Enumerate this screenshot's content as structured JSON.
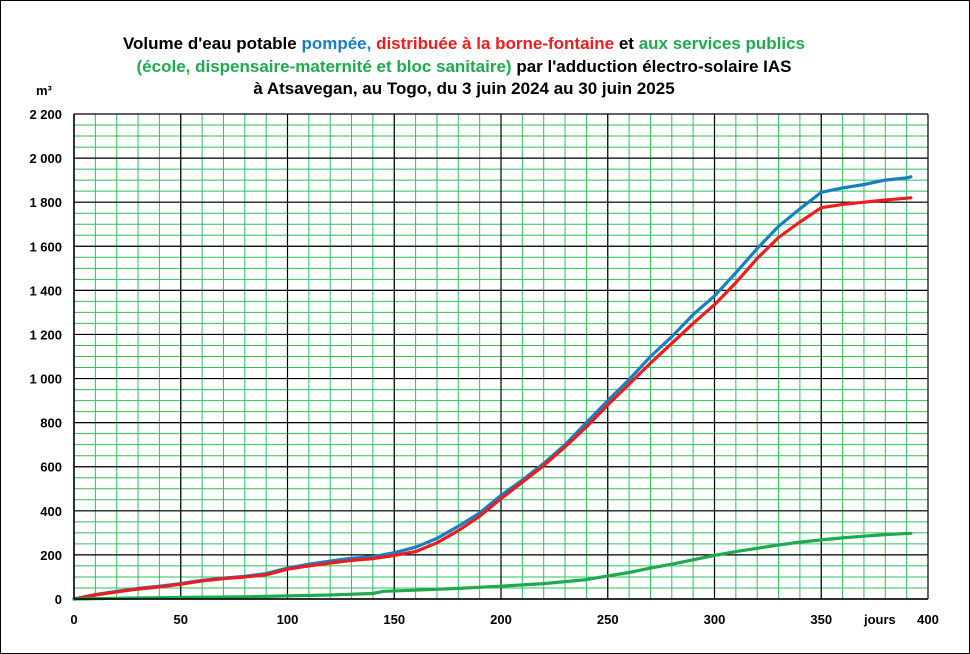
{
  "colors": {
    "pumped": "#1a7fc2",
    "fountain": "#ee1c1c",
    "services": "#1faa4e",
    "minor_grid": "#2fbf5f",
    "major_grid": "#000000"
  },
  "title": {
    "line1": [
      {
        "text": "Volume d'eau potable ",
        "color": "#000000"
      },
      {
        "text": "pompée, ",
        "color": "#1a7fc2"
      },
      {
        "text": "distribuée à la borne-fontaine",
        "color": "#ee1c1c"
      },
      {
        "text": " et ",
        "color": "#000000"
      },
      {
        "text": "aux services publics",
        "color": "#1faa4e"
      }
    ],
    "line2": [
      {
        "text": "(école, dispensaire-maternité et bloc sanitaire)",
        "color": "#1faa4e"
      },
      {
        "text": " par l'adduction électro-solaire IAS",
        "color": "#000000"
      }
    ],
    "line3": [
      {
        "text": "à Atsavegan, au Togo, du 3 juin 2024 au 30 juin 2025",
        "color": "#000000"
      }
    ]
  },
  "chart_data": {
    "type": "line",
    "ylabel": "m³",
    "xlabel": "jours",
    "xlim": [
      0,
      400
    ],
    "ylim": [
      0,
      2200
    ],
    "x_ticks": [
      0,
      50,
      100,
      150,
      200,
      250,
      300,
      350,
      400
    ],
    "y_ticks": [
      0,
      200,
      400,
      600,
      800,
      1000,
      1200,
      1400,
      1600,
      1800,
      2000,
      2200
    ],
    "y_tick_labels": [
      "0",
      "200",
      "400",
      "600",
      "800",
      "1 000",
      "1 200",
      "1 400",
      "1 600",
      "1 800",
      "2 000",
      "2 200"
    ],
    "x_minor_step": 10,
    "y_minor_step": 50,
    "grid": true,
    "series": [
      {
        "key": "pumped",
        "color": "#1a7fc2",
        "points": [
          [
            0,
            0
          ],
          [
            10,
            20
          ],
          [
            20,
            35
          ],
          [
            30,
            48
          ],
          [
            40,
            58
          ],
          [
            50,
            70
          ],
          [
            60,
            85
          ],
          [
            70,
            95
          ],
          [
            80,
            103
          ],
          [
            90,
            115
          ],
          [
            100,
            140
          ],
          [
            110,
            158
          ],
          [
            120,
            172
          ],
          [
            130,
            185
          ],
          [
            140,
            192
          ],
          [
            150,
            210
          ],
          [
            160,
            235
          ],
          [
            170,
            275
          ],
          [
            180,
            330
          ],
          [
            190,
            390
          ],
          [
            200,
            470
          ],
          [
            210,
            540
          ],
          [
            220,
            615
          ],
          [
            230,
            700
          ],
          [
            240,
            800
          ],
          [
            250,
            900
          ],
          [
            260,
            995
          ],
          [
            270,
            1100
          ],
          [
            280,
            1190
          ],
          [
            290,
            1290
          ],
          [
            300,
            1375
          ],
          [
            310,
            1480
          ],
          [
            320,
            1590
          ],
          [
            330,
            1690
          ],
          [
            340,
            1770
          ],
          [
            350,
            1845
          ],
          [
            360,
            1865
          ],
          [
            370,
            1880
          ],
          [
            380,
            1900
          ],
          [
            390,
            1910
          ],
          [
            392,
            1915
          ]
        ]
      },
      {
        "key": "fountain",
        "color": "#ee1c1c",
        "points": [
          [
            0,
            0
          ],
          [
            10,
            18
          ],
          [
            20,
            32
          ],
          [
            30,
            45
          ],
          [
            40,
            55
          ],
          [
            50,
            67
          ],
          [
            60,
            82
          ],
          [
            70,
            92
          ],
          [
            80,
            100
          ],
          [
            90,
            110
          ],
          [
            100,
            135
          ],
          [
            110,
            150
          ],
          [
            120,
            163
          ],
          [
            130,
            175
          ],
          [
            140,
            183
          ],
          [
            150,
            198
          ],
          [
            160,
            215
          ],
          [
            170,
            255
          ],
          [
            180,
            310
          ],
          [
            190,
            375
          ],
          [
            200,
            455
          ],
          [
            210,
            530
          ],
          [
            220,
            605
          ],
          [
            230,
            690
          ],
          [
            240,
            780
          ],
          [
            250,
            880
          ],
          [
            260,
            975
          ],
          [
            270,
            1070
          ],
          [
            280,
            1160
          ],
          [
            290,
            1250
          ],
          [
            300,
            1335
          ],
          [
            310,
            1435
          ],
          [
            320,
            1545
          ],
          [
            330,
            1640
          ],
          [
            340,
            1710
          ],
          [
            350,
            1775
          ],
          [
            360,
            1790
          ],
          [
            370,
            1800
          ],
          [
            380,
            1810
          ],
          [
            390,
            1818
          ],
          [
            392,
            1820
          ]
        ]
      },
      {
        "key": "services",
        "color": "#1faa4e",
        "points": [
          [
            0,
            0
          ],
          [
            20,
            3
          ],
          [
            40,
            6
          ],
          [
            60,
            8
          ],
          [
            80,
            10
          ],
          [
            100,
            14
          ],
          [
            120,
            18
          ],
          [
            140,
            25
          ],
          [
            145,
            35
          ],
          [
            160,
            40
          ],
          [
            180,
            48
          ],
          [
            200,
            58
          ],
          [
            220,
            70
          ],
          [
            240,
            88
          ],
          [
            250,
            105
          ],
          [
            260,
            120
          ],
          [
            270,
            140
          ],
          [
            280,
            158
          ],
          [
            290,
            178
          ],
          [
            300,
            198
          ],
          [
            310,
            215
          ],
          [
            320,
            230
          ],
          [
            330,
            245
          ],
          [
            340,
            258
          ],
          [
            350,
            268
          ],
          [
            360,
            277
          ],
          [
            370,
            285
          ],
          [
            380,
            292
          ],
          [
            392,
            298
          ]
        ]
      }
    ]
  }
}
